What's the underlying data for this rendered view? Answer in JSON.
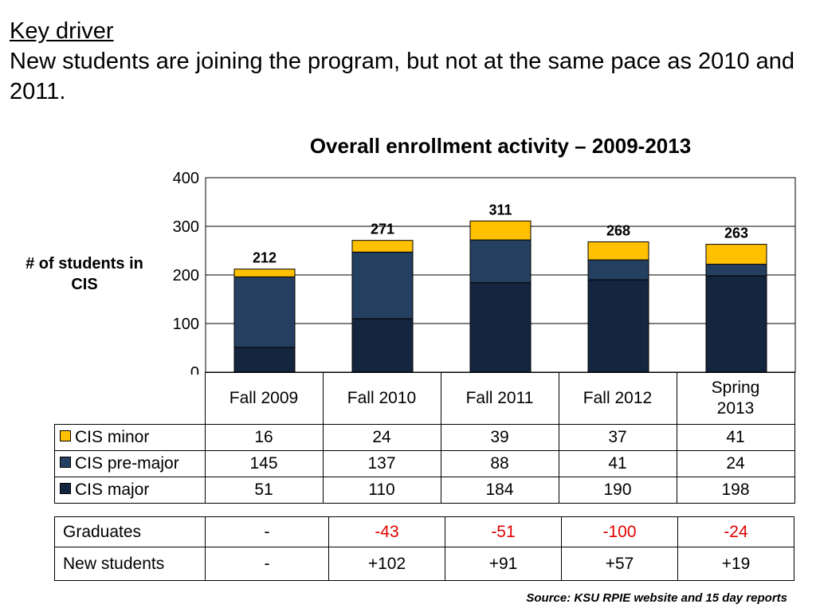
{
  "heading": {
    "key_driver": "Key driver",
    "subtitle": "New students are joining the program, but not at the same pace as 2010 and 2011."
  },
  "chart_data": {
    "type": "bar",
    "stacked": true,
    "title": "Overall enrollment activity – 2009-2013",
    "ylabel": "# of students in CIS",
    "categories": [
      "Fall 2009",
      "Fall 2010",
      "Fall 2011",
      "Fall 2012",
      "Spring 2013"
    ],
    "series": [
      {
        "name": "CIS major",
        "values": [
          51,
          110,
          184,
          190,
          198
        ],
        "color": "#14253f"
      },
      {
        "name": "CIS pre-major",
        "values": [
          145,
          137,
          88,
          41,
          24
        ],
        "color": "#243f60"
      },
      {
        "name": "CIS minor",
        "values": [
          16,
          24,
          39,
          37,
          41
        ],
        "color": "#ffc000"
      }
    ],
    "totals": [
      212,
      271,
      311,
      268,
      263
    ],
    "ylim": [
      0,
      400
    ],
    "yticks": [
      0,
      100,
      200,
      300,
      400
    ],
    "grid": true
  },
  "table": {
    "rows": [
      {
        "label": "CIS minor",
        "color": "#ffc000",
        "values": [
          "16",
          "24",
          "39",
          "37",
          "41"
        ]
      },
      {
        "label": "CIS pre-major",
        "color": "#243f60",
        "values": [
          "145",
          "137",
          "88",
          "41",
          "24"
        ]
      },
      {
        "label": "CIS major",
        "color": "#14253f",
        "values": [
          "51",
          "110",
          "184",
          "190",
          "198"
        ]
      }
    ]
  },
  "flow_table": {
    "rows": [
      {
        "label": "Graduates",
        "values": [
          "-",
          "-43",
          "-51",
          "-100",
          "-24"
        ]
      },
      {
        "label": "New students",
        "values": [
          "-",
          "+102",
          "+91",
          "+57",
          "+19"
        ]
      }
    ]
  },
  "colors": {
    "negative": "#e00000",
    "grid": "#000000"
  },
  "source": "Source: KSU RPIE website and 15 day reports"
}
